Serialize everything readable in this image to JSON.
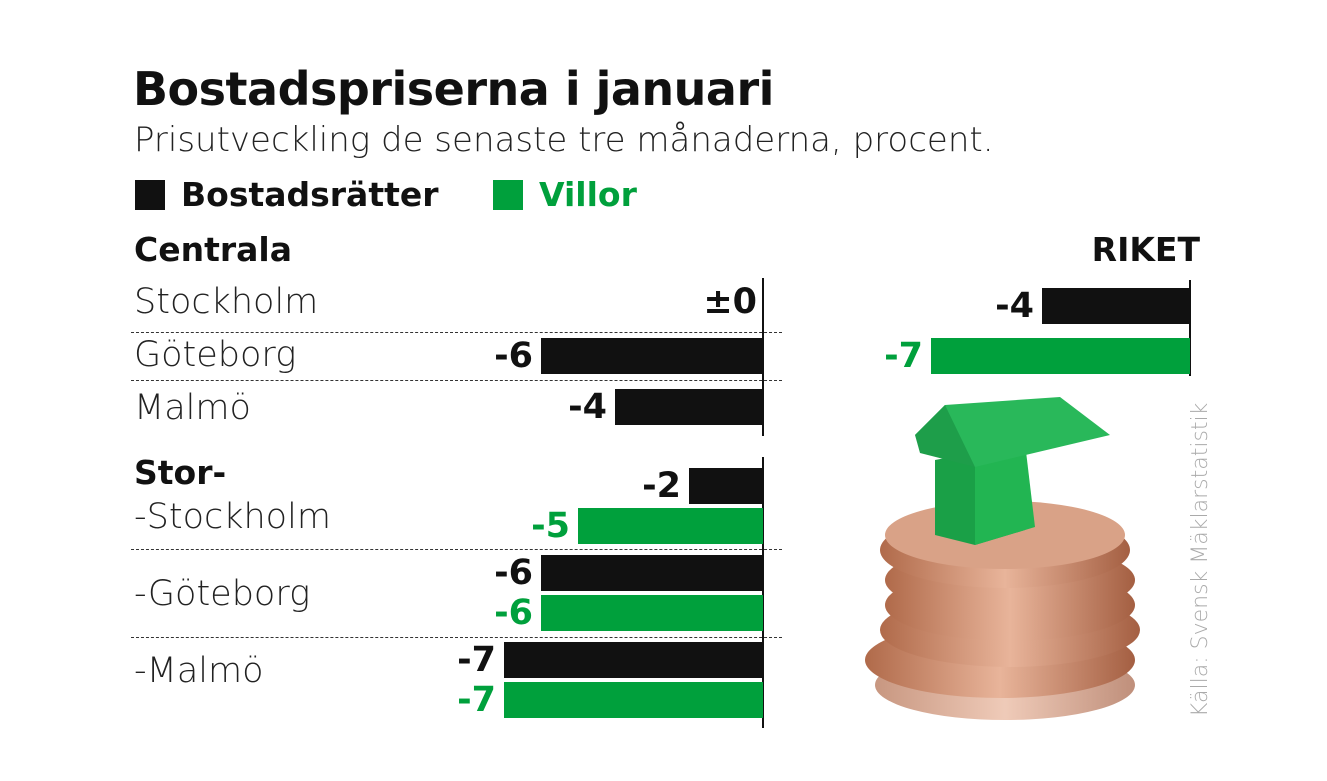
{
  "chart_data": {
    "type": "bar",
    "title": "Bostadspriserna i januari",
    "subtitle": "Prisutveckling de senaste tre månaderna, procent.",
    "legend": [
      {
        "name": "Bostadsrätter",
        "color": "#111111"
      },
      {
        "name": "Villor",
        "color": "#00a03c"
      }
    ],
    "orientation": "horizontal",
    "groups": [
      {
        "heading": "Centrala",
        "rows": [
          {
            "label": "Stockholm",
            "bostadsratter": 0,
            "bostadsratter_label": "±0"
          },
          {
            "label": "Göteborg",
            "bostadsratter": -6,
            "bostadsratter_label": "-6"
          },
          {
            "label": "Malmö",
            "bostadsratter": -4,
            "bostadsratter_label": "-4"
          }
        ]
      },
      {
        "heading": "Stor-",
        "rows": [
          {
            "label": "-Stockholm",
            "bostadsratter": -2,
            "bostadsratter_label": "-2",
            "villor": -5,
            "villor_label": "-5"
          },
          {
            "label": "-Göteborg",
            "bostadsratter": -6,
            "bostadsratter_label": "-6",
            "villor": -6,
            "villor_label": "-6"
          },
          {
            "label": "-Malmö",
            "bostadsratter": -7,
            "bostadsratter_label": "-7",
            "villor": -7,
            "villor_label": "-7"
          }
        ]
      },
      {
        "heading": "RIKET",
        "rows": [
          {
            "label": "",
            "bostadsratter": -4,
            "bostadsratter_label": "-4",
            "villor": -7,
            "villor_label": "-7"
          }
        ]
      }
    ],
    "source": "Källa: Svensk Mäklarstatistik"
  }
}
